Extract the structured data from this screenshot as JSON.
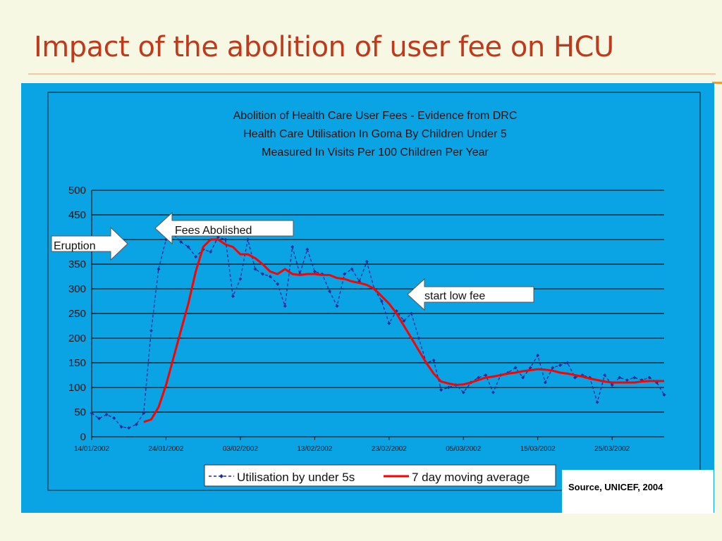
{
  "slide": {
    "title": "Impact of the abolition of user fee on HCU",
    "source": "Source, UNICEF, 2004"
  },
  "colors": {
    "background": "#f7f8e3",
    "title": "#c0391b",
    "panel": "#0aa3e4",
    "series_daily": "#1f2d9b",
    "series_avg": "#ff0000"
  },
  "chart_data": {
    "type": "line",
    "title": [
      "Abolition of Health Care User Fees - Evidence from DRC",
      "Health Care Utilisation In Goma By Children Under 5",
      "Measured In Visits Per 100 Children Per Year"
    ],
    "xlabel": "",
    "ylabel": "",
    "ylim": [
      0,
      500
    ],
    "yticks": [
      "0",
      "50",
      "100",
      "150",
      "200",
      "250",
      "300",
      "350",
      "400",
      "450",
      "500"
    ],
    "x_start": "14/01/2002",
    "x_end": "01/04/2002",
    "xtick_labels": [
      "14/01/2002",
      "24/01/2002",
      "03/02/2002",
      "13/02/2002",
      "23/02/2002",
      "05/03/2002",
      "15/03/2002",
      "25/03/2002"
    ],
    "grid": "horizontal",
    "legend": "bottom",
    "series": [
      {
        "name": "Utilisation by under 5s",
        "style": "dashed-markers",
        "x": [
          "14/01/2002",
          "15/01/2002",
          "16/01/2002",
          "17/01/2002",
          "18/01/2002",
          "19/01/2002",
          "20/01/2002",
          "21/01/2002",
          "22/01/2002",
          "23/01/2002",
          "24/01/2002",
          "25/01/2002",
          "26/01/2002",
          "27/01/2002",
          "28/01/2002",
          "29/01/2002",
          "30/01/2002",
          "31/01/2002",
          "01/02/2002",
          "02/02/2002",
          "03/02/2002",
          "04/02/2002",
          "05/02/2002",
          "06/02/2002",
          "07/02/2002",
          "08/02/2002",
          "09/02/2002",
          "10/02/2002",
          "11/02/2002",
          "12/02/2002",
          "13/02/2002",
          "14/02/2002",
          "15/02/2002",
          "16/02/2002",
          "17/02/2002",
          "18/02/2002",
          "19/02/2002",
          "20/02/2002",
          "21/02/2002",
          "22/02/2002",
          "23/02/2002",
          "24/02/2002",
          "25/02/2002",
          "26/02/2002",
          "27/02/2002",
          "28/02/2002",
          "01/03/2002",
          "02/03/2002",
          "03/03/2002",
          "04/03/2002",
          "05/03/2002",
          "06/03/2002",
          "07/03/2002",
          "08/03/2002",
          "09/03/2002",
          "10/03/2002",
          "11/03/2002",
          "12/03/2002",
          "13/03/2002",
          "14/03/2002",
          "15/03/2002",
          "16/03/2002",
          "17/03/2002",
          "18/03/2002",
          "19/03/2002",
          "20/03/2002",
          "21/03/2002",
          "22/03/2002",
          "23/03/2002",
          "24/03/2002",
          "25/03/2002",
          "26/03/2002",
          "27/03/2002",
          "28/03/2002",
          "29/03/2002",
          "30/03/2002",
          "31/03/2002",
          "01/04/2002"
        ],
        "values": [
          48,
          37,
          45,
          38,
          20,
          18,
          25,
          48,
          215,
          340,
          400,
          410,
          395,
          385,
          365,
          380,
          375,
          405,
          400,
          285,
          320,
          400,
          340,
          330,
          325,
          310,
          265,
          385,
          330,
          380,
          335,
          330,
          295,
          265,
          330,
          340,
          315,
          355,
          300,
          275,
          230,
          255,
          235,
          250,
          200,
          150,
          155,
          95,
          100,
          105,
          90,
          110,
          120,
          125,
          90,
          125,
          130,
          140,
          120,
          140,
          165,
          110,
          140,
          145,
          150,
          120,
          125,
          120,
          70,
          125,
          105,
          120,
          115,
          120,
          115,
          120,
          110,
          85
        ]
      },
      {
        "name": "7 day moving average",
        "style": "solid",
        "x": [
          "21/01/2002",
          "22/01/2002",
          "23/01/2002",
          "24/01/2002",
          "25/01/2002",
          "26/01/2002",
          "27/01/2002",
          "28/01/2002",
          "29/01/2002",
          "30/01/2002",
          "31/01/2002",
          "01/02/2002",
          "02/02/2002",
          "03/02/2002",
          "04/02/2002",
          "05/02/2002",
          "06/02/2002",
          "07/02/2002",
          "08/02/2002",
          "09/02/2002",
          "10/02/2002",
          "11/02/2002",
          "12/02/2002",
          "13/02/2002",
          "14/02/2002",
          "15/02/2002",
          "16/02/2002",
          "17/02/2002",
          "18/02/2002",
          "19/02/2002",
          "20/02/2002",
          "21/02/2002",
          "22/02/2002",
          "23/02/2002",
          "24/02/2002",
          "25/02/2002",
          "26/02/2002",
          "27/02/2002",
          "28/02/2002",
          "01/03/2002",
          "02/03/2002",
          "03/03/2002",
          "04/03/2002",
          "05/03/2002",
          "06/03/2002",
          "07/03/2002",
          "08/03/2002",
          "09/03/2002",
          "10/03/2002",
          "11/03/2002",
          "12/03/2002",
          "13/03/2002",
          "14/03/2002",
          "15/03/2002",
          "16/03/2002",
          "17/03/2002",
          "18/03/2002",
          "19/03/2002",
          "20/03/2002",
          "21/03/2002",
          "22/03/2002",
          "23/03/2002",
          "24/03/2002",
          "25/03/2002",
          "26/03/2002",
          "27/03/2002",
          "28/03/2002",
          "29/03/2002",
          "30/03/2002",
          "31/03/2002",
          "01/04/2002"
        ],
        "values": [
          30,
          35,
          60,
          105,
          160,
          215,
          270,
          335,
          385,
          400,
          400,
          390,
          385,
          370,
          370,
          362,
          350,
          335,
          330,
          340,
          330,
          328,
          330,
          330,
          328,
          328,
          322,
          320,
          315,
          312,
          308,
          300,
          285,
          270,
          250,
          225,
          200,
          175,
          150,
          128,
          112,
          108,
          105,
          106,
          110,
          115,
          120,
          122,
          125,
          128,
          130,
          133,
          135,
          137,
          136,
          134,
          130,
          128,
          125,
          122,
          118,
          115,
          112,
          110,
          110,
          110,
          110,
          112,
          113,
          113,
          113
        ]
      }
    ],
    "annotations": [
      "Eruption",
      "Fees Abolished",
      "start low fee"
    ]
  }
}
